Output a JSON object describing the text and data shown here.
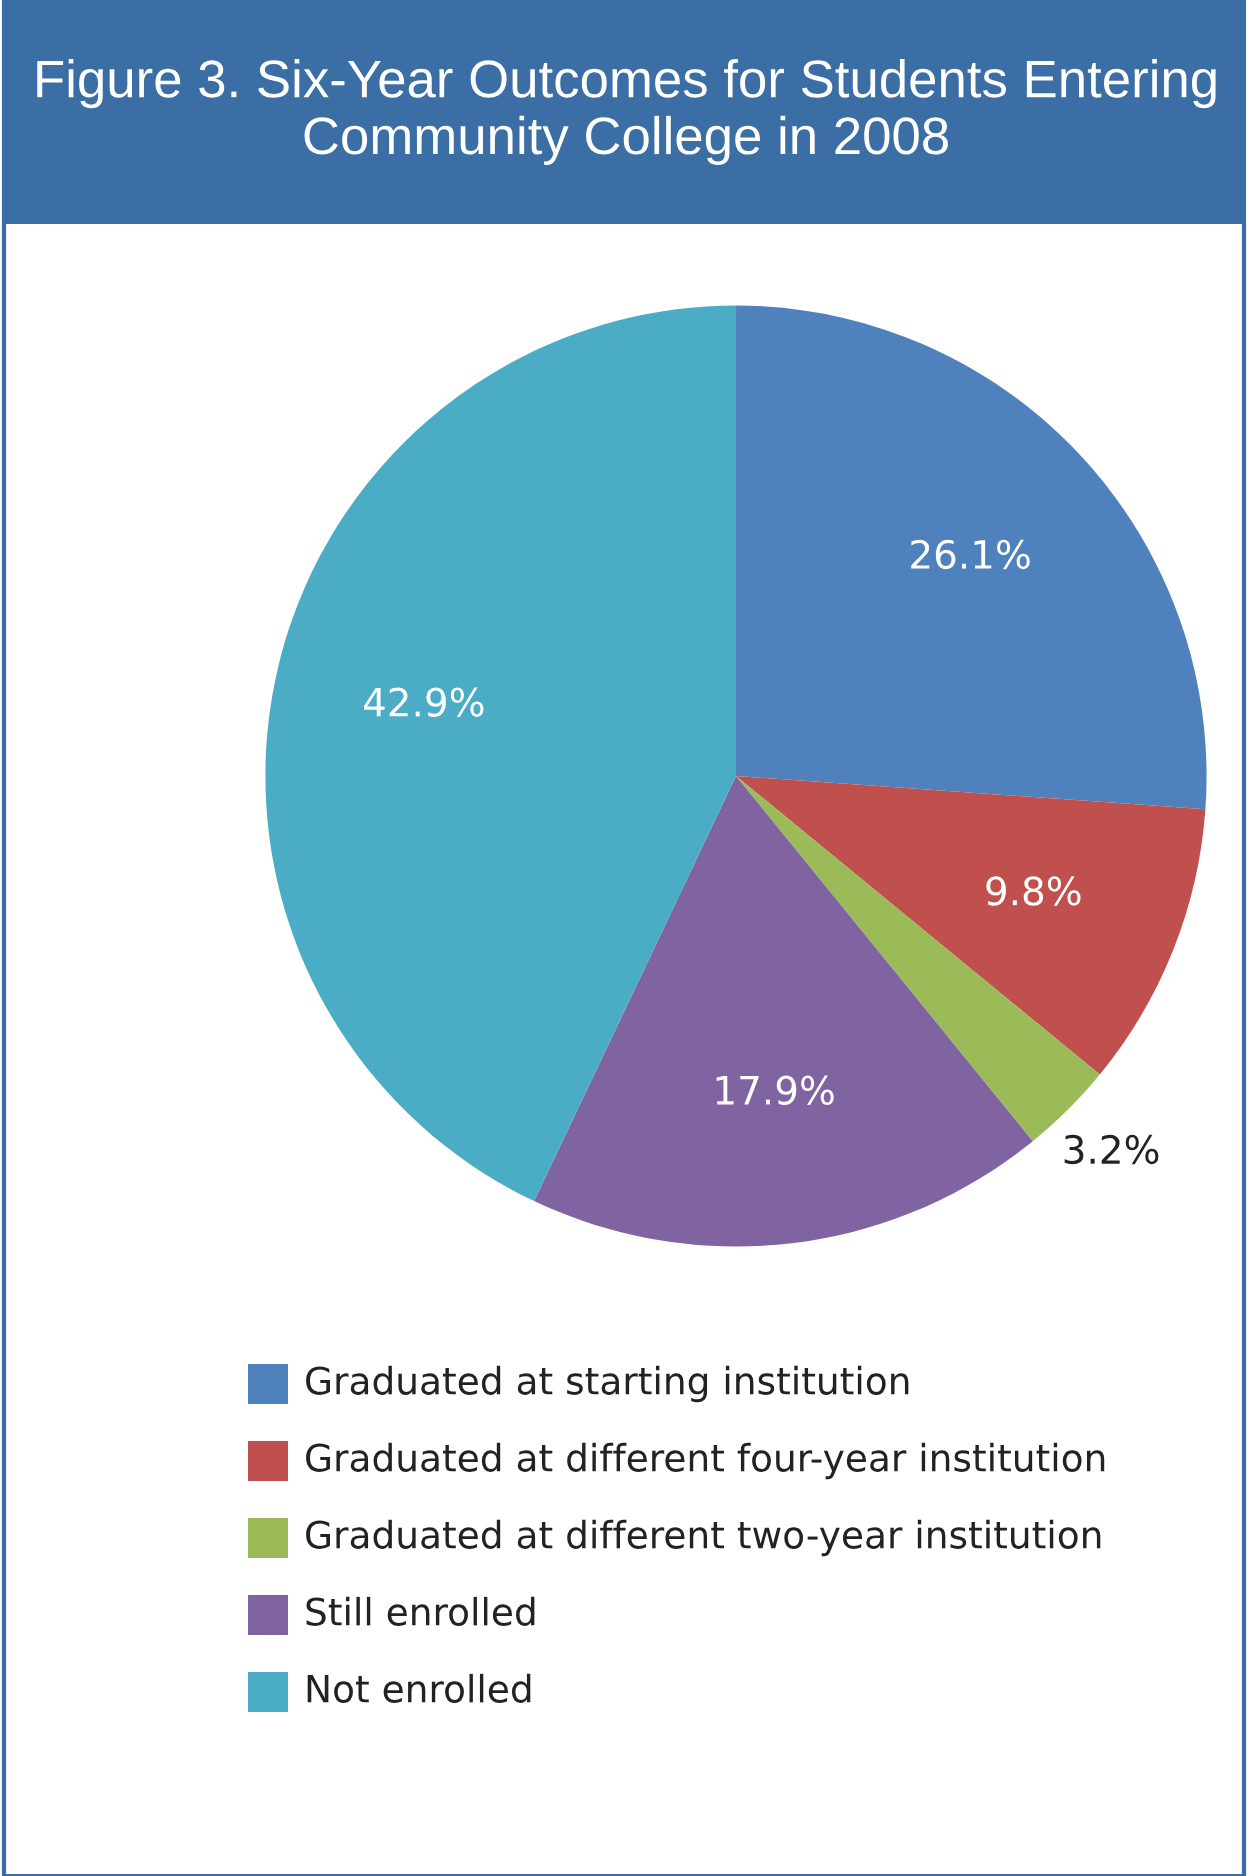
{
  "chart_data": {
    "type": "pie",
    "title": "Figure 3. Six-Year Outcomes for Students Entering Community College in 2008",
    "categories": [
      "Graduated at starting institution",
      "Graduated at different four-year institution",
      "Graduated at different two-year institution",
      "Still enrolled",
      "Not enrolled"
    ],
    "values": [
      26.1,
      9.8,
      3.2,
      17.9,
      42.9
    ],
    "value_labels": [
      "26.1%",
      "9.8%",
      "3.2%",
      "17.9%",
      "42.9%"
    ],
    "colors": [
      "#4f81bd",
      "#c0504d",
      "#9bbb59",
      "#8064a2",
      "#4bacc6"
    ],
    "legend": "bottom"
  }
}
